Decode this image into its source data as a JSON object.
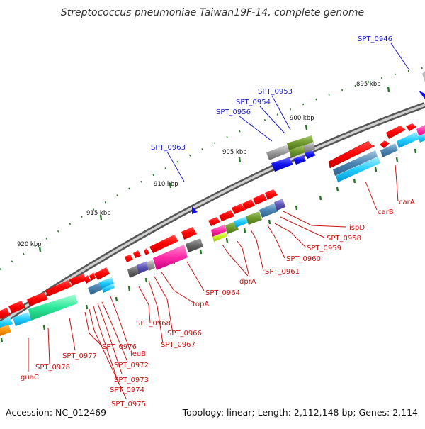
{
  "title": "Streptococcus pneumoniae Taiwan19F-14, complete genome",
  "footer": {
    "accession": "Accession: NC_012469",
    "stats": "Topology: linear; Length: 2,112,148 bp; Genes: 2,114"
  },
  "ticks": [
    "895 kbp",
    "900 kbp",
    "905 kbp",
    "910 kbp",
    "915 kbp",
    "920 kbp"
  ],
  "labels_top": [
    "SPT_0946",
    "SPT_0953",
    "SPT_0954",
    "SPT_0956",
    "SPT_0963"
  ],
  "labels_bottom": [
    "ispD",
    "SPT_0958",
    "SPT_0959",
    "SPT_0960",
    "SPT_0961",
    "dprA",
    "SPT_0964",
    "topA",
    "SPT_0966",
    "SPT_0967",
    "SPT_0968",
    "leuB",
    "SPT_0972",
    "SPT_0973",
    "SPT_0974",
    "SPT_0975",
    "SPT_0976",
    "SPT_0977",
    "SPT_0978",
    "guaC",
    "carB",
    "carA"
  ],
  "colors": {
    "top_label": "#1a1acc",
    "bottom_label": "#cc1111",
    "backbone": "#8c8c8c",
    "tick": "#1e7a1e"
  }
}
